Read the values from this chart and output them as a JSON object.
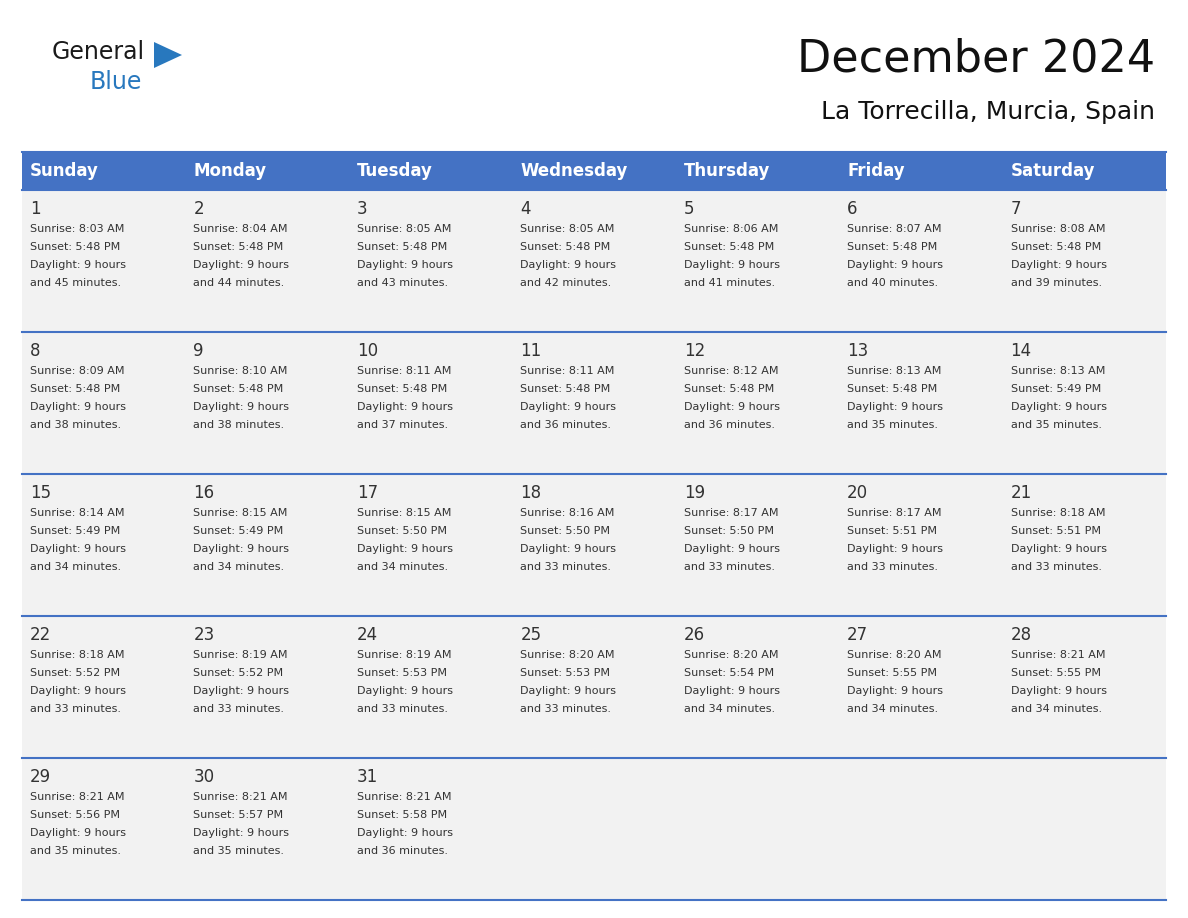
{
  "title": "December 2024",
  "subtitle": "La Torrecilla, Murcia, Spain",
  "days_of_week": [
    "Sunday",
    "Monday",
    "Tuesday",
    "Wednesday",
    "Thursday",
    "Friday",
    "Saturday"
  ],
  "header_bg": "#4472C4",
  "header_text": "#FFFFFF",
  "row_bg": "#F2F2F2",
  "day_number_color": "#333333",
  "text_color": "#333333",
  "grid_line_color": "#4472C4",
  "calendar_data": [
    {
      "day": 1,
      "col": 0,
      "row": 0,
      "sunrise": "8:03 AM",
      "sunset": "5:48 PM",
      "daylight_hours": 9,
      "daylight_minutes": 45
    },
    {
      "day": 2,
      "col": 1,
      "row": 0,
      "sunrise": "8:04 AM",
      "sunset": "5:48 PM",
      "daylight_hours": 9,
      "daylight_minutes": 44
    },
    {
      "day": 3,
      "col": 2,
      "row": 0,
      "sunrise": "8:05 AM",
      "sunset": "5:48 PM",
      "daylight_hours": 9,
      "daylight_minutes": 43
    },
    {
      "day": 4,
      "col": 3,
      "row": 0,
      "sunrise": "8:05 AM",
      "sunset": "5:48 PM",
      "daylight_hours": 9,
      "daylight_minutes": 42
    },
    {
      "day": 5,
      "col": 4,
      "row": 0,
      "sunrise": "8:06 AM",
      "sunset": "5:48 PM",
      "daylight_hours": 9,
      "daylight_minutes": 41
    },
    {
      "day": 6,
      "col": 5,
      "row": 0,
      "sunrise": "8:07 AM",
      "sunset": "5:48 PM",
      "daylight_hours": 9,
      "daylight_minutes": 40
    },
    {
      "day": 7,
      "col": 6,
      "row": 0,
      "sunrise": "8:08 AM",
      "sunset": "5:48 PM",
      "daylight_hours": 9,
      "daylight_minutes": 39
    },
    {
      "day": 8,
      "col": 0,
      "row": 1,
      "sunrise": "8:09 AM",
      "sunset": "5:48 PM",
      "daylight_hours": 9,
      "daylight_minutes": 38
    },
    {
      "day": 9,
      "col": 1,
      "row": 1,
      "sunrise": "8:10 AM",
      "sunset": "5:48 PM",
      "daylight_hours": 9,
      "daylight_minutes": 38
    },
    {
      "day": 10,
      "col": 2,
      "row": 1,
      "sunrise": "8:11 AM",
      "sunset": "5:48 PM",
      "daylight_hours": 9,
      "daylight_minutes": 37
    },
    {
      "day": 11,
      "col": 3,
      "row": 1,
      "sunrise": "8:11 AM",
      "sunset": "5:48 PM",
      "daylight_hours": 9,
      "daylight_minutes": 36
    },
    {
      "day": 12,
      "col": 4,
      "row": 1,
      "sunrise": "8:12 AM",
      "sunset": "5:48 PM",
      "daylight_hours": 9,
      "daylight_minutes": 36
    },
    {
      "day": 13,
      "col": 5,
      "row": 1,
      "sunrise": "8:13 AM",
      "sunset": "5:48 PM",
      "daylight_hours": 9,
      "daylight_minutes": 35
    },
    {
      "day": 14,
      "col": 6,
      "row": 1,
      "sunrise": "8:13 AM",
      "sunset": "5:49 PM",
      "daylight_hours": 9,
      "daylight_minutes": 35
    },
    {
      "day": 15,
      "col": 0,
      "row": 2,
      "sunrise": "8:14 AM",
      "sunset": "5:49 PM",
      "daylight_hours": 9,
      "daylight_minutes": 34
    },
    {
      "day": 16,
      "col": 1,
      "row": 2,
      "sunrise": "8:15 AM",
      "sunset": "5:49 PM",
      "daylight_hours": 9,
      "daylight_minutes": 34
    },
    {
      "day": 17,
      "col": 2,
      "row": 2,
      "sunrise": "8:15 AM",
      "sunset": "5:50 PM",
      "daylight_hours": 9,
      "daylight_minutes": 34
    },
    {
      "day": 18,
      "col": 3,
      "row": 2,
      "sunrise": "8:16 AM",
      "sunset": "5:50 PM",
      "daylight_hours": 9,
      "daylight_minutes": 33
    },
    {
      "day": 19,
      "col": 4,
      "row": 2,
      "sunrise": "8:17 AM",
      "sunset": "5:50 PM",
      "daylight_hours": 9,
      "daylight_minutes": 33
    },
    {
      "day": 20,
      "col": 5,
      "row": 2,
      "sunrise": "8:17 AM",
      "sunset": "5:51 PM",
      "daylight_hours": 9,
      "daylight_minutes": 33
    },
    {
      "day": 21,
      "col": 6,
      "row": 2,
      "sunrise": "8:18 AM",
      "sunset": "5:51 PM",
      "daylight_hours": 9,
      "daylight_minutes": 33
    },
    {
      "day": 22,
      "col": 0,
      "row": 3,
      "sunrise": "8:18 AM",
      "sunset": "5:52 PM",
      "daylight_hours": 9,
      "daylight_minutes": 33
    },
    {
      "day": 23,
      "col": 1,
      "row": 3,
      "sunrise": "8:19 AM",
      "sunset": "5:52 PM",
      "daylight_hours": 9,
      "daylight_minutes": 33
    },
    {
      "day": 24,
      "col": 2,
      "row": 3,
      "sunrise": "8:19 AM",
      "sunset": "5:53 PM",
      "daylight_hours": 9,
      "daylight_minutes": 33
    },
    {
      "day": 25,
      "col": 3,
      "row": 3,
      "sunrise": "8:20 AM",
      "sunset": "5:53 PM",
      "daylight_hours": 9,
      "daylight_minutes": 33
    },
    {
      "day": 26,
      "col": 4,
      "row": 3,
      "sunrise": "8:20 AM",
      "sunset": "5:54 PM",
      "daylight_hours": 9,
      "daylight_minutes": 34
    },
    {
      "day": 27,
      "col": 5,
      "row": 3,
      "sunrise": "8:20 AM",
      "sunset": "5:55 PM",
      "daylight_hours": 9,
      "daylight_minutes": 34
    },
    {
      "day": 28,
      "col": 6,
      "row": 3,
      "sunrise": "8:21 AM",
      "sunset": "5:55 PM",
      "daylight_hours": 9,
      "daylight_minutes": 34
    },
    {
      "day": 29,
      "col": 0,
      "row": 4,
      "sunrise": "8:21 AM",
      "sunset": "5:56 PM",
      "daylight_hours": 9,
      "daylight_minutes": 35
    },
    {
      "day": 30,
      "col": 1,
      "row": 4,
      "sunrise": "8:21 AM",
      "sunset": "5:57 PM",
      "daylight_hours": 9,
      "daylight_minutes": 35
    },
    {
      "day": 31,
      "col": 2,
      "row": 4,
      "sunrise": "8:21 AM",
      "sunset": "5:58 PM",
      "daylight_hours": 9,
      "daylight_minutes": 36
    }
  ],
  "num_rows": 5,
  "num_cols": 7,
  "logo_general_color": "#1a1a1a",
  "logo_blue_color": "#2878BE",
  "logo_triangle_color": "#2878BE",
  "title_fontsize": 32,
  "subtitle_fontsize": 18,
  "header_fontsize": 12,
  "day_num_fontsize": 12,
  "cell_text_fontsize": 8
}
